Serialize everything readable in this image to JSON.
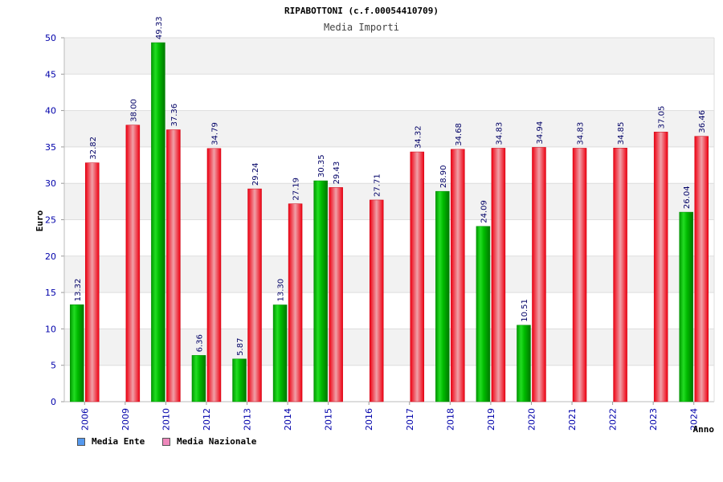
{
  "chart_data": {
    "type": "bar",
    "title": "RIPABOTTONI (c.f.00054410709)",
    "subtitle": "Media Importi",
    "ylabel": "Euro",
    "xlabel": "Anno",
    "ylim": [
      0,
      50
    ],
    "yticks": [
      "0",
      "5",
      "10",
      "15",
      "20",
      "25",
      "30",
      "35",
      "40",
      "45",
      "50"
    ],
    "categories": [
      "2006",
      "2009",
      "2010",
      "2012",
      "2013",
      "2014",
      "2015",
      "2016",
      "2017",
      "2018",
      "2019",
      "2020",
      "2021",
      "2022",
      "2023",
      "2024"
    ],
    "series": [
      {
        "name": "Media Ente",
        "color": "#00bb00",
        "values": [
          13.32,
          null,
          49.33,
          6.36,
          5.87,
          13.3,
          30.35,
          null,
          null,
          28.9,
          24.09,
          10.51,
          null,
          null,
          null,
          26.04
        ],
        "labels": [
          "13.32",
          "",
          "49.33",
          "6.36",
          "5.87",
          "13.30",
          "30.35",
          "",
          "",
          "28.90",
          "24.09",
          "10.51",
          "",
          "",
          "",
          "26.04"
        ]
      },
      {
        "name": "Media Nazionale",
        "color": "#ee2233",
        "values": [
          32.82,
          38.0,
          37.36,
          34.79,
          29.24,
          27.19,
          29.43,
          27.71,
          34.32,
          34.68,
          34.83,
          34.94,
          34.83,
          34.85,
          37.05,
          36.46
        ],
        "labels": [
          "32.82",
          "38.00",
          "37.36",
          "34.79",
          "29.24",
          "27.19",
          "29.43",
          "27.71",
          "34.32",
          "34.68",
          "34.83",
          "34.94",
          "34.83",
          "34.85",
          "37.05",
          "36.46"
        ]
      }
    ],
    "legend": {
      "position": "bottom-left",
      "items": [
        {
          "label": "Media Ente",
          "color": "#5599ee"
        },
        {
          "label": "Media Nazionale",
          "color": "#ee88bb"
        }
      ]
    },
    "grid": true,
    "colors": {
      "axis_text": "#0000aa",
      "band": "#f2f2f2"
    }
  }
}
